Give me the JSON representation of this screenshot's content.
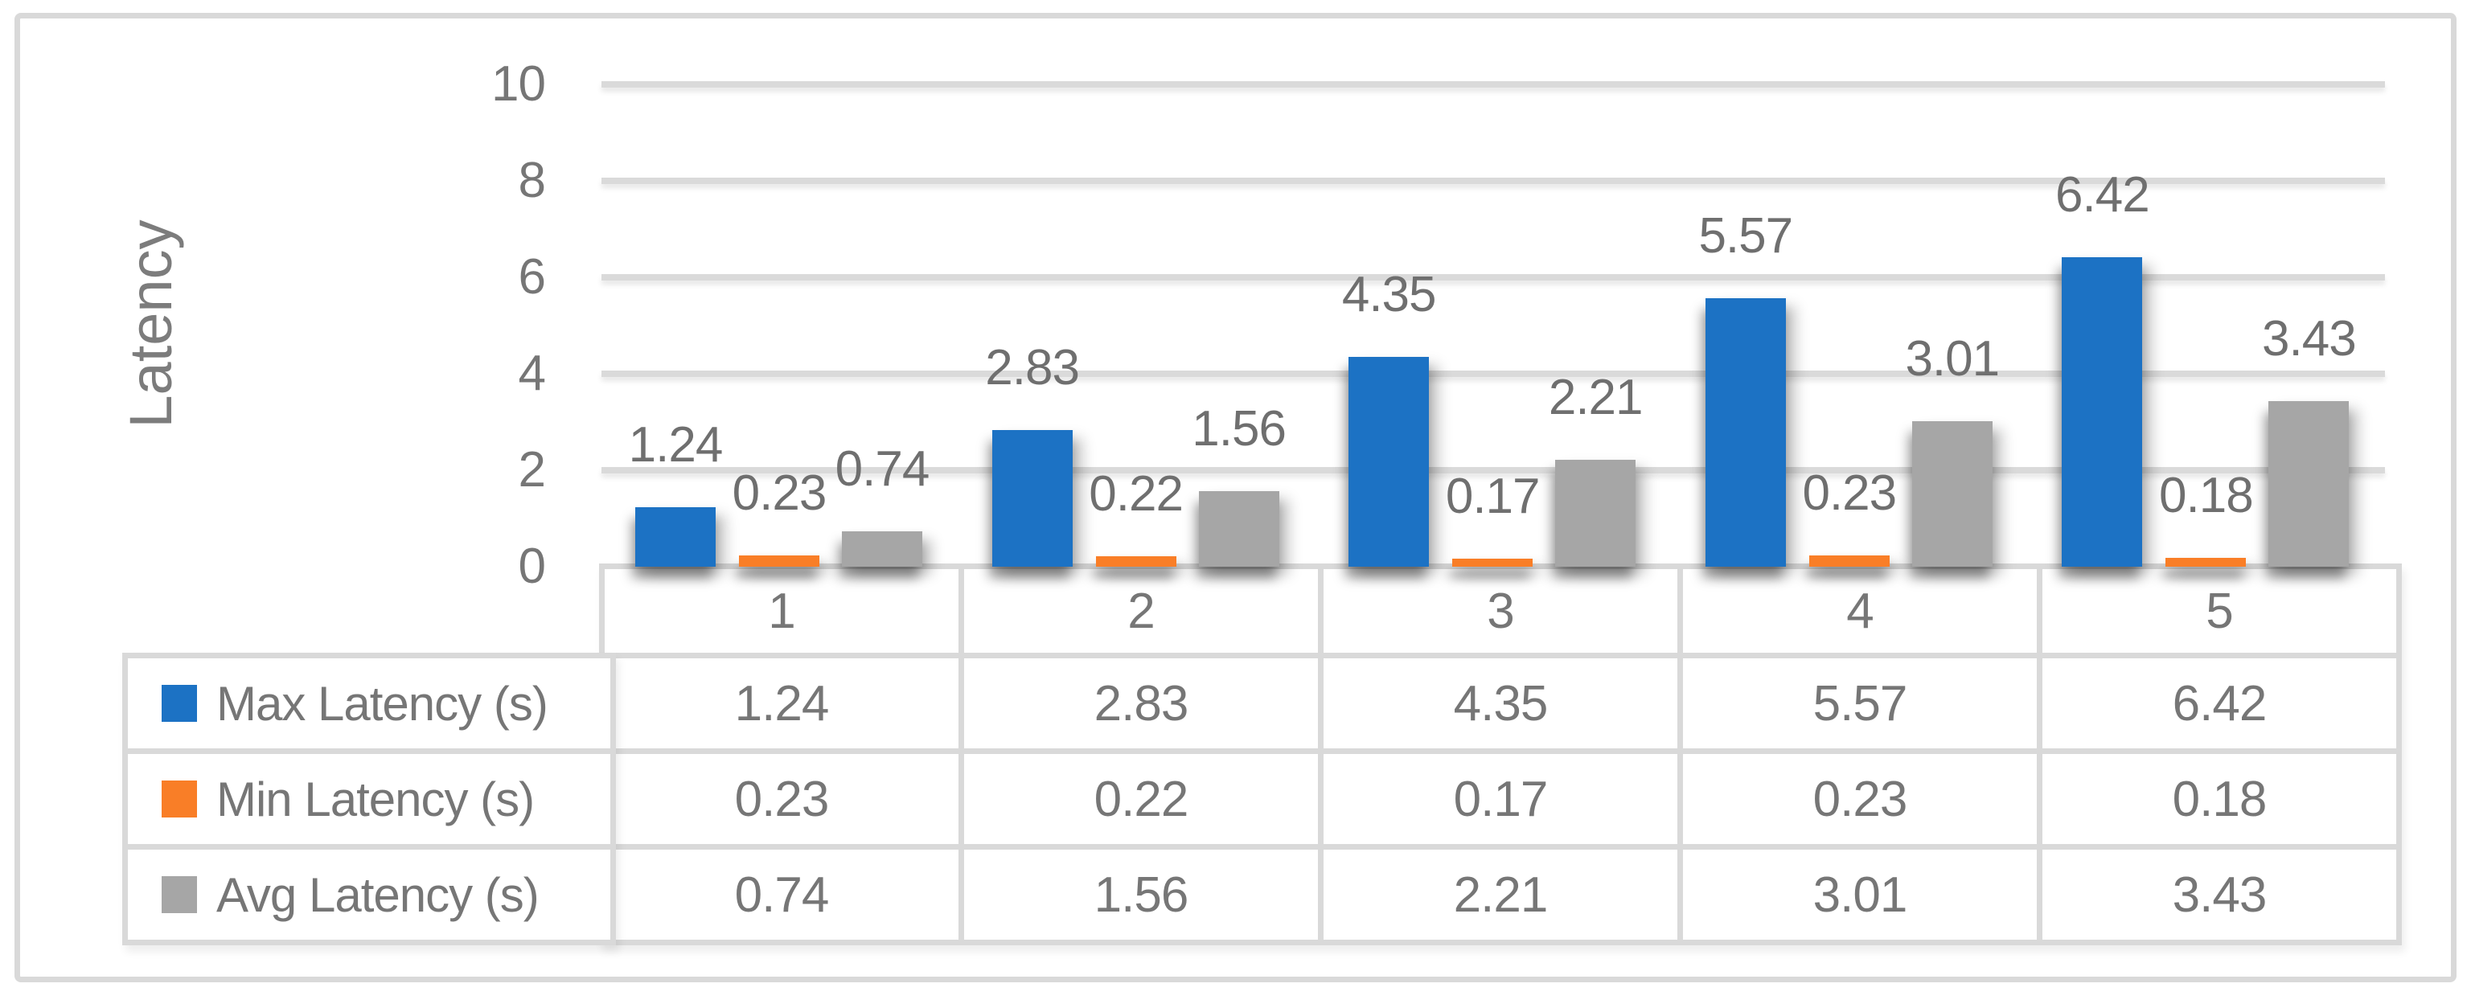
{
  "figure": {
    "background": "#FFFFFF",
    "frame_border_color": "#D9D9D9",
    "gridline_color": "#DADADA",
    "text_color": "#6F6F6F"
  },
  "chart_data": {
    "type": "bar",
    "title": "",
    "xlabel": "",
    "ylabel": "Latency",
    "categories": [
      "1",
      "2",
      "3",
      "4",
      "5"
    ],
    "series": [
      {
        "name": "Max Latency (s)",
        "color": "#1C72C4",
        "values": [
          1.24,
          2.83,
          4.35,
          5.57,
          6.42
        ]
      },
      {
        "name": "Min Latency (s)",
        "color": "#F97E27",
        "values": [
          0.23,
          0.22,
          0.17,
          0.23,
          0.18
        ]
      },
      {
        "name": "Avg Latency (s)",
        "color": "#A6A6A6",
        "values": [
          0.74,
          1.56,
          2.21,
          3.01,
          3.43
        ]
      }
    ],
    "ylim": [
      0,
      10
    ],
    "yticks": [
      "0",
      "2",
      "4",
      "6",
      "8",
      "10"
    ],
    "grid": "horizontal",
    "data_labels": true,
    "legend_position": "table-left-column"
  },
  "table": {
    "header_row": [
      "1",
      "2",
      "3",
      "4",
      "5"
    ],
    "rows": [
      {
        "label": "Max Latency (s)",
        "swatch_color": "#1C72C4",
        "values": [
          "1.24",
          "2.83",
          "4.35",
          "5.57",
          "6.42"
        ]
      },
      {
        "label": "Min Latency (s)",
        "swatch_color": "#F97E27",
        "values": [
          "0.23",
          "0.22",
          "0.17",
          "0.23",
          "0.18"
        ]
      },
      {
        "label": "Avg Latency (s)",
        "swatch_color": "#A6A6A6",
        "values": [
          "0.74",
          "1.56",
          "2.21",
          "3.01",
          "3.43"
        ]
      }
    ]
  }
}
